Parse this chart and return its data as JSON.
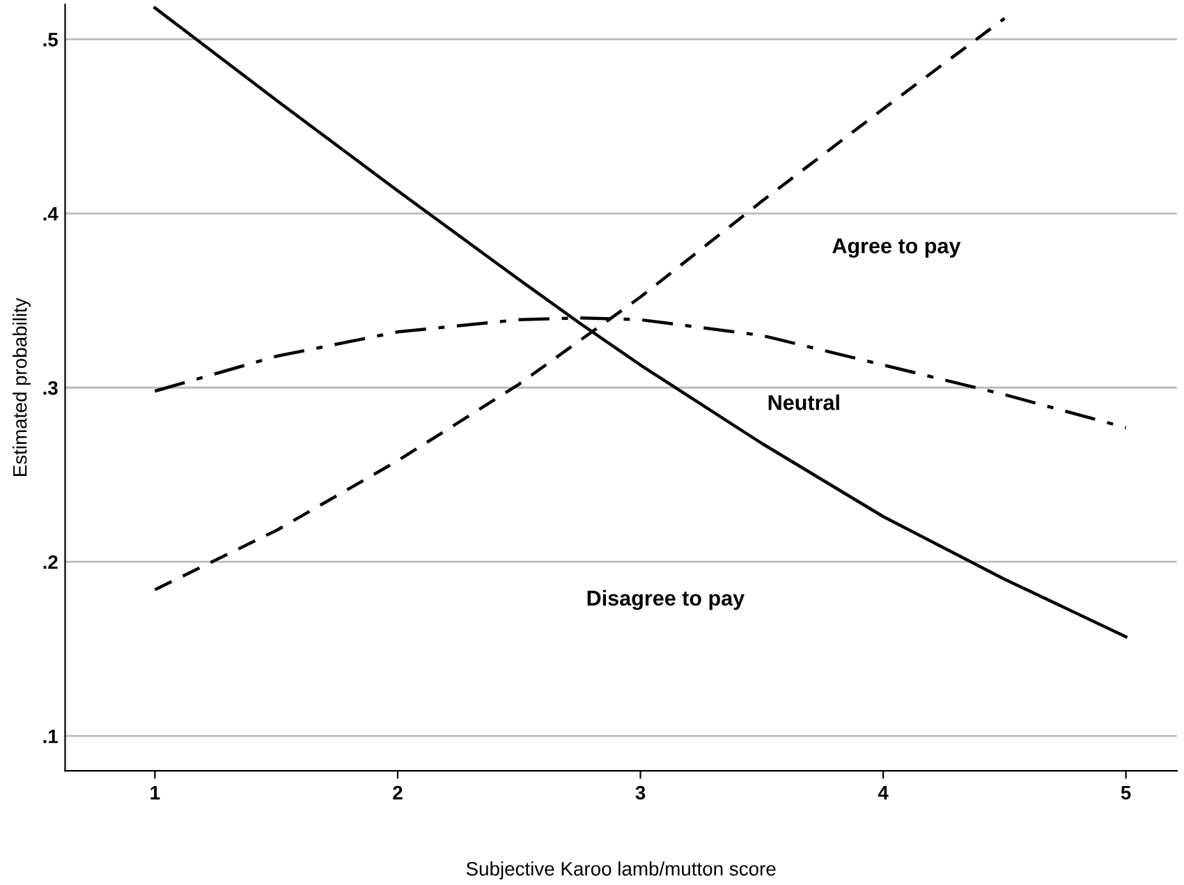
{
  "chart_data": {
    "type": "line",
    "xlabel": "Subjective Karoo lamb/mutton score",
    "ylabel": "Estimated probability",
    "x": [
      1,
      1.5,
      2,
      2.5,
      2.75,
      3,
      3.5,
      4,
      4.5,
      5
    ],
    "series": [
      {
        "color": "#000000",
        "line_style": "solid",
        "values": [
          0.518,
          0.465,
          0.413,
          0.362,
          0.337,
          0.313,
          0.268,
          0.226,
          0.19,
          0.157
        ]
      },
      {
        "color": "#000000",
        "line_style": "dashed",
        "x": [
          1,
          1.5,
          2,
          2.5,
          3,
          3.5,
          4,
          4.5
        ],
        "values": [
          0.184,
          0.218,
          0.258,
          0.302,
          0.352,
          0.407,
          0.46,
          0.512
        ]
      },
      {
        "color": "#000000",
        "line_style": "dashdot",
        "values": [
          0.298,
          0.318,
          0.332,
          0.339,
          0.34,
          0.339,
          0.33,
          0.313,
          0.296,
          0.277
        ]
      }
    ],
    "annotations": [
      "Agree to pay",
      "Neutral",
      "Disagree to pay"
    ],
    "xlim": [
      0.63,
      5.21
    ],
    "ylim": [
      0.08,
      0.52
    ],
    "xticks": [
      1,
      2,
      3,
      4,
      5
    ],
    "yticks": [
      {
        "value": 0.1,
        "label": ".1"
      },
      {
        "value": 0.2,
        "label": ".2"
      },
      {
        "value": 0.3,
        "label": ".3"
      },
      {
        "value": 0.4,
        "label": ".4"
      },
      {
        "value": 0.5,
        "label": ".5"
      }
    ],
    "grid": "y",
    "marker": "none",
    "legend": false
  }
}
